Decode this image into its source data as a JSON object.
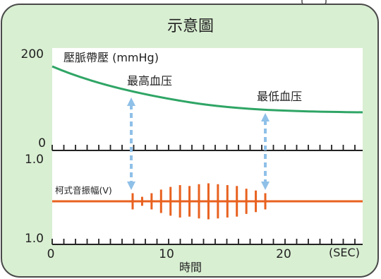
{
  "title": "示意圖",
  "upper": {
    "label": "壓脈帶壓 (mmHg)",
    "y_max": "200",
    "y_min": "0",
    "systolic_label": "最高血压",
    "diastolic_label": "最低血压"
  },
  "lower": {
    "label": "柯式音振幅(V)",
    "y_top": "1.0",
    "y_bottom": "1.0",
    "pulse_amplitudes": [
      0.45,
      0.25,
      0.45,
      0.65,
      0.8,
      0.9,
      0.85,
      0.95,
      1.0,
      0.95,
      0.9,
      0.85,
      0.7,
      0.6,
      0.45
    ]
  },
  "x_axis": {
    "ticks": [
      "0",
      "10",
      "20"
    ],
    "unit": "(SEC)",
    "label": "時間"
  },
  "colors": {
    "background": "#d9efd2",
    "border": "#4a4a4a",
    "cuff_curve": "#2fa565",
    "korotkoff": "#e8611f",
    "arrow": "#8fc0e8",
    "axis": "#222222"
  }
}
